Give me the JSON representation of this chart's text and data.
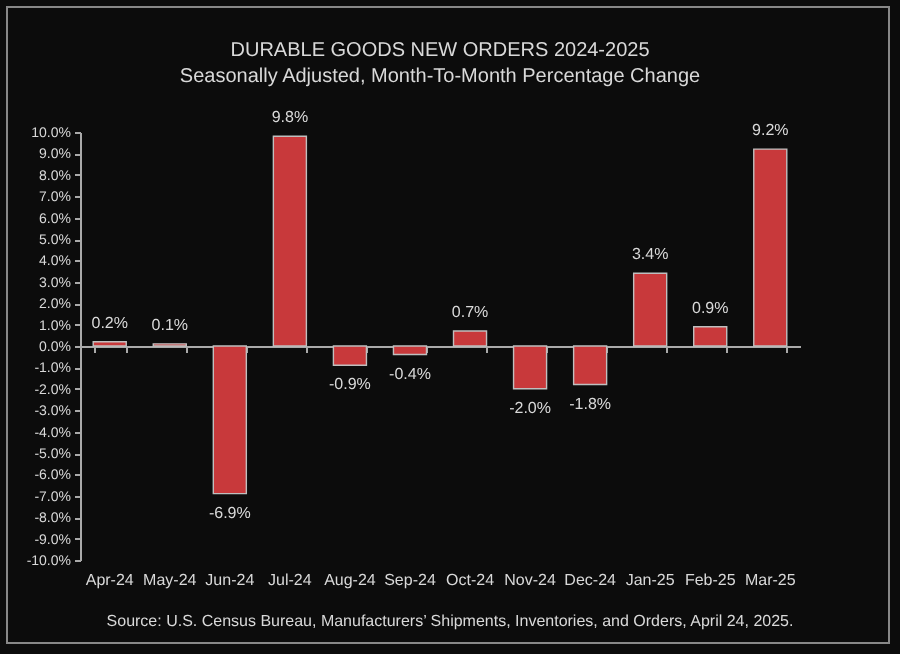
{
  "chart_data": {
    "type": "bar",
    "title": "DURABLE GOODS NEW ORDERS 2024-2025",
    "subtitle": "Seasonally Adjusted,  Month-To-Month Percentage Change",
    "categories": [
      "Apr-24",
      "May-24",
      "Jun-24",
      "Jul-24",
      "Aug-24",
      "Sep-24",
      "Oct-24",
      "Nov-24",
      "Dec-24",
      "Jan-25",
      "Feb-25",
      "Mar-25"
    ],
    "values": [
      0.2,
      0.1,
      -6.9,
      9.8,
      -0.9,
      -0.4,
      0.7,
      -2.0,
      -1.8,
      3.4,
      0.9,
      9.2
    ],
    "value_labels": [
      "0.2%",
      "0.1%",
      "-6.9%",
      "9.8%",
      "-0.9%",
      "-0.4%",
      "0.7%",
      "-2.0%",
      "-1.8%",
      "3.4%",
      "0.9%",
      "9.2%"
    ],
    "color": "#c8393b",
    "ylim": [
      -10,
      10
    ],
    "yticks": [
      {
        "value": -10,
        "label": "-10.0%"
      },
      {
        "value": -9,
        "label": "-9.0%"
      },
      {
        "value": -8,
        "label": "-8.0%"
      },
      {
        "value": -7,
        "label": "-7.0%"
      },
      {
        "value": -6,
        "label": "-6.0%"
      },
      {
        "value": -5,
        "label": "-5.0%"
      },
      {
        "value": -4,
        "label": "-4.0%"
      },
      {
        "value": -3,
        "label": "-3.0%"
      },
      {
        "value": -2,
        "label": "-2.0%"
      },
      {
        "value": -1,
        "label": "-1.0%"
      },
      {
        "value": 0,
        "label": "0.0%"
      },
      {
        "value": 1,
        "label": "1.0%"
      },
      {
        "value": 2,
        "label": "2.0%"
      },
      {
        "value": 3,
        "label": "3.0%"
      },
      {
        "value": 4,
        "label": "4.0%"
      },
      {
        "value": 5,
        "label": "5.0%"
      },
      {
        "value": 6,
        "label": "6.0%"
      },
      {
        "value": 7,
        "label": "7.0%"
      },
      {
        "value": 8,
        "label": "8.0%"
      },
      {
        "value": 9,
        "label": "9.0%"
      },
      {
        "value": 10,
        "label": "10.0%"
      }
    ],
    "annotations": [
      "Source: U.S. Census Bureau, Manufacturers’ Shipments, Inventories, and Orders, April 24, 2025."
    ]
  }
}
